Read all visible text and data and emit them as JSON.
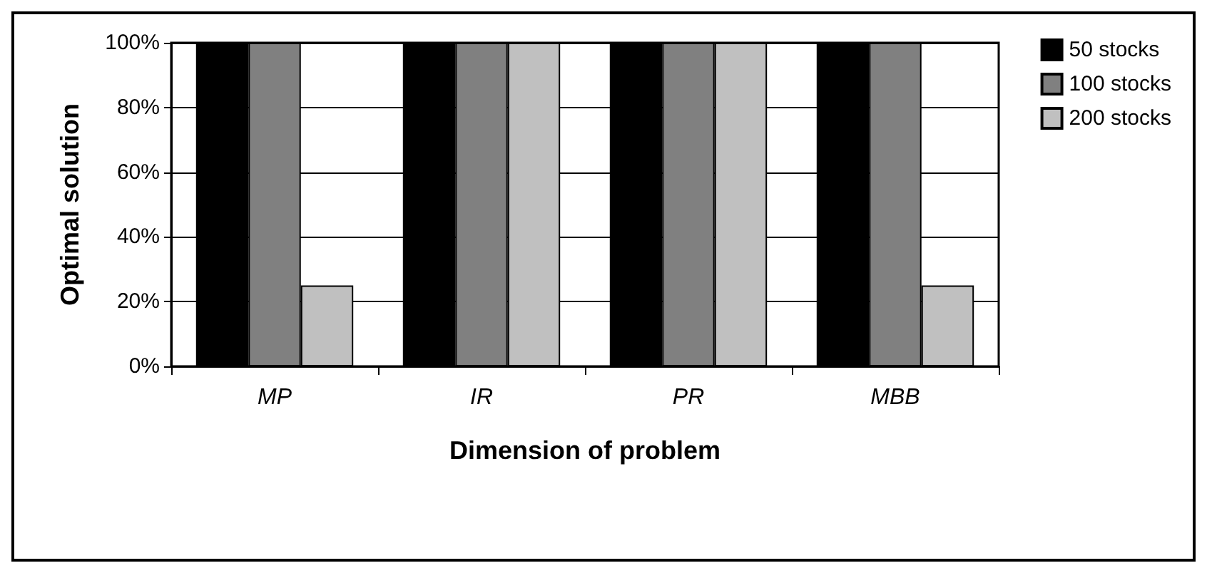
{
  "chart_data": {
    "type": "bar",
    "xlabel": "Dimension of problem",
    "ylabel": "Optimal solution",
    "categories": [
      "MP",
      "IR",
      "PR",
      "MBB"
    ],
    "series": [
      {
        "name": "50 stocks",
        "color": "#000000",
        "values": [
          100,
          100,
          100,
          100
        ]
      },
      {
        "name": "100 stocks",
        "color": "#808080",
        "values": [
          100,
          100,
          100,
          100
        ]
      },
      {
        "name": "200 stocks",
        "color": "#c0c0c0",
        "values": [
          25,
          100,
          100,
          25
        ]
      }
    ],
    "ylim": [
      0,
      100
    ],
    "yticks": [
      {
        "value": 0,
        "label": "0%"
      },
      {
        "value": 20,
        "label": "20%"
      },
      {
        "value": 40,
        "label": "40%"
      },
      {
        "value": 60,
        "label": "60%"
      },
      {
        "value": 80,
        "label": "80%"
      },
      {
        "value": 100,
        "label": "100%"
      }
    ],
    "grid": "y",
    "legend": "top right"
  }
}
